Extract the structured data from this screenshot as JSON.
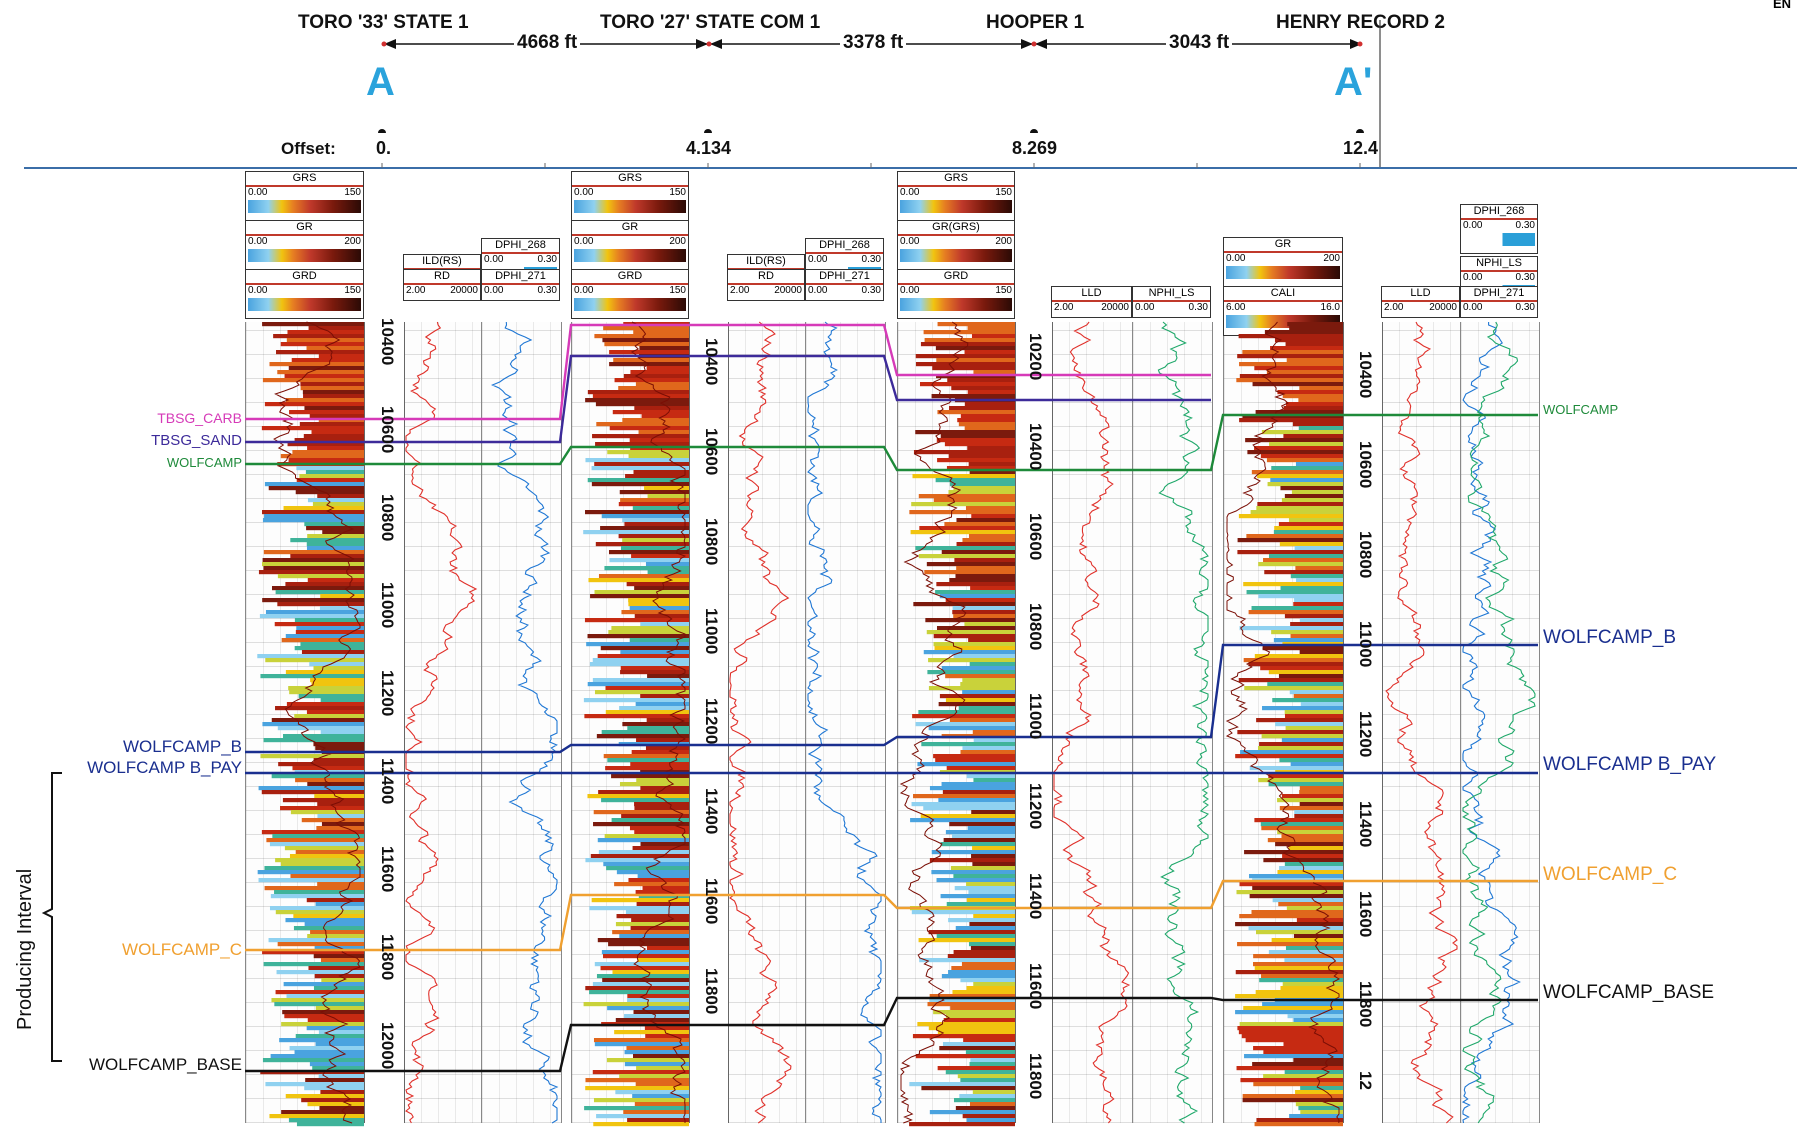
{
  "wells": [
    {
      "name": "TORO '33' STATE 1",
      "offset": "0."
    },
    {
      "name": "TORO '27' STATE COM 1",
      "offset": "4.134"
    },
    {
      "name": "HOOPER 1",
      "offset": "8.269"
    },
    {
      "name": "HENRY RECORD 2",
      "offset": "12.4"
    }
  ],
  "distances": [
    "4668 ft",
    "3378 ft",
    "3043 ft"
  ],
  "section": {
    "start_label": "A",
    "end_label": "A'"
  },
  "offset_label": "Offset:",
  "corner_text": "EN",
  "interval_label": "Producing Interval",
  "tracks": {
    "w1": {
      "gr_headers": [
        {
          "name": "GRS",
          "min": "0.00",
          "max": "150"
        },
        {
          "name": "GR",
          "min": "0.00",
          "max": "200"
        },
        {
          "name": "GRD",
          "min": "0.00",
          "max": "150"
        }
      ],
      "res_headers": [
        {
          "name": "ILD(RS)",
          "min": "2.00",
          "max": "20000"
        },
        {
          "name": "RD",
          "min": "2.00",
          "max": "20000"
        }
      ],
      "por_headers": [
        {
          "name": "DPHI_268",
          "min": "0.00",
          "max": "0.30"
        },
        {
          "name": "DPHI_271",
          "min": "0.00",
          "max": "0.30"
        }
      ],
      "depths": [
        "10400",
        "10600",
        "10800",
        "11000",
        "11200",
        "11400",
        "11600",
        "11800",
        "12000"
      ]
    },
    "w2": {
      "gr_headers": [
        {
          "name": "GRS",
          "min": "0.00",
          "max": "150"
        },
        {
          "name": "GR",
          "min": "0.00",
          "max": "200"
        },
        {
          "name": "GRD",
          "min": "0.00",
          "max": "150"
        }
      ],
      "res_headers": [
        {
          "name": "ILD(RS)",
          "min": "2.00",
          "max": "20000"
        },
        {
          "name": "RD",
          "min": "2.00",
          "max": "20000"
        }
      ],
      "por_headers": [
        {
          "name": "DPHI_268",
          "min": "0.00",
          "max": "0.30"
        },
        {
          "name": "DPHI_271",
          "min": "0.00",
          "max": "0.30"
        }
      ],
      "depths": [
        "10400",
        "10600",
        "10800",
        "11000",
        "11200",
        "11400",
        "11600",
        "11800"
      ]
    },
    "w3": {
      "gr_headers": [
        {
          "name": "GRS",
          "min": "0.00",
          "max": "150"
        },
        {
          "name": "GR(GRS)",
          "min": "0.00",
          "max": "200"
        },
        {
          "name": "GRD",
          "min": "0.00",
          "max": "150"
        }
      ],
      "res_headers": [
        {
          "name": "LLD",
          "min": "2.00",
          "max": "20000"
        }
      ],
      "por_headers": [
        {
          "name": "NPHI_LS",
          "min": "0.00",
          "max": "0.30"
        }
      ],
      "depths": [
        "10200",
        "10400",
        "10600",
        "10800",
        "11000",
        "11200",
        "11400",
        "11600",
        "11800"
      ]
    },
    "w4": {
      "gr_headers": [
        {
          "name": "GR",
          "min": "0.00",
          "max": "200"
        },
        {
          "name": "CALI",
          "min": "6.00",
          "max": "16.0"
        }
      ],
      "res_headers": [
        {
          "name": "LLD",
          "min": "2.00",
          "max": "20000"
        }
      ],
      "por_headers": [
        {
          "name": "DPHI_268",
          "min": "0.00",
          "max": "0.30"
        },
        {
          "name": "NPHI_LS",
          "min": "0.00",
          "max": "0.30"
        },
        {
          "name": "DPHI_271",
          "min": "0.00",
          "max": "0.30"
        }
      ],
      "depths": [
        "10400",
        "10600",
        "10800",
        "11000",
        "11200",
        "11400",
        "11600",
        "11800",
        "12"
      ]
    }
  },
  "markers": {
    "tbsg_carb": {
      "label": "TBSG_CARB",
      "color": "#d63ab8"
    },
    "tbsg_sand": {
      "label": "TBSG_SAND",
      "color": "#3d2b9a"
    },
    "wolfcamp": {
      "label": "WOLFCAMP",
      "color": "#1e8a3a"
    },
    "wolfcamp_b": {
      "label": "WOLFCAMP_B",
      "color": "#1a2f8f"
    },
    "wolfcamp_b_pay": {
      "label": "WOLFCAMP B_PAY",
      "color": "#1a2f8f"
    },
    "wolfcamp_c": {
      "label": "WOLFCAMP_C",
      "color": "#f0a030"
    },
    "wolfcamp_base": {
      "label": "WOLFCAMP_BASE",
      "color": "#111111"
    }
  }
}
